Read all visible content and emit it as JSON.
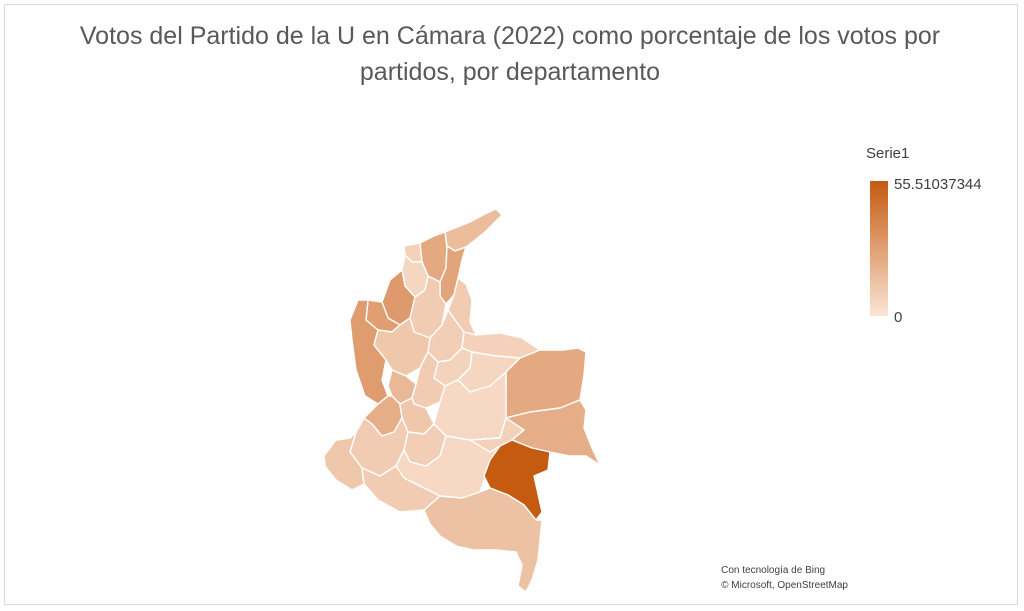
{
  "title": {
    "line1": "Votos del Partido de la U en Cámara (2022) como porcentaje de los votos por",
    "line2": "partidos, por departamento"
  },
  "legend": {
    "series_name": "Serie1",
    "max_label": "55.51037344",
    "min_label": "0",
    "color_max": "#c55a11",
    "color_min": "#fbe5d6"
  },
  "credits": {
    "line1": "Con tecnología de Bing",
    "line2": "© Microsoft, OpenStreetMap"
  },
  "map": {
    "type": "choropleth",
    "value_range": [
      0,
      55.51037344
    ],
    "regions": [
      {
        "id": "guajira",
        "value": 16
      },
      {
        "id": "magdalena",
        "value": 24
      },
      {
        "id": "atlantico",
        "value": 8
      },
      {
        "id": "cesar",
        "value": 26
      },
      {
        "id": "bolivar-norte",
        "value": 6
      },
      {
        "id": "sucre",
        "value": 30
      },
      {
        "id": "cordoba",
        "value": 28
      },
      {
        "id": "bolivar-sur",
        "value": 10
      },
      {
        "id": "norte-santander",
        "value": 10
      },
      {
        "id": "choco",
        "value": 29
      },
      {
        "id": "antioquia",
        "value": 12
      },
      {
        "id": "santander",
        "value": 9
      },
      {
        "id": "arauca",
        "value": 8
      },
      {
        "id": "boyaca",
        "value": 7
      },
      {
        "id": "caldas",
        "value": 18
      },
      {
        "id": "valle",
        "value": 22
      },
      {
        "id": "cundinamarca",
        "value": 10
      },
      {
        "id": "casanare",
        "value": 6
      },
      {
        "id": "vichada",
        "value": 24
      },
      {
        "id": "meta",
        "value": 5
      },
      {
        "id": "tolima",
        "value": 12
      },
      {
        "id": "cauca",
        "value": 10
      },
      {
        "id": "huila",
        "value": 9
      },
      {
        "id": "narino",
        "value": 12
      },
      {
        "id": "caqueta",
        "value": 5
      },
      {
        "id": "putumayo",
        "value": 10
      },
      {
        "id": "guaviare",
        "value": 8
      },
      {
        "id": "guainia",
        "value": 22
      },
      {
        "id": "vaupes",
        "value": 55.51037344
      },
      {
        "id": "amazonas",
        "value": 14
      }
    ]
  }
}
